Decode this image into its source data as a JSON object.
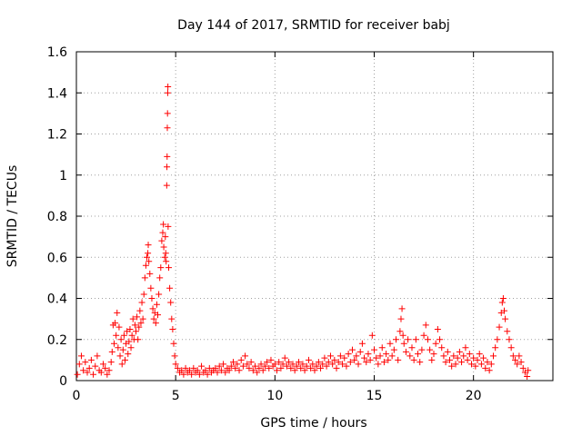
{
  "chart_data": {
    "type": "scatter",
    "title": "Day 144 of 2017, SRMTID for receiver babj",
    "xlabel": "GPS time / hours",
    "ylabel": "SRMTID / TECUs",
    "xlim": [
      0,
      24
    ],
    "ylim": [
      0,
      1.6
    ],
    "xticks": [
      0,
      5,
      10,
      15,
      20
    ],
    "xtick_labels": [
      "0",
      "5",
      "10",
      "15",
      "20"
    ],
    "yticks": [
      0,
      0.2,
      0.4,
      0.6,
      0.8,
      1,
      1.2,
      1.4,
      1.6
    ],
    "ytick_labels": [
      "0",
      "0.2",
      "0.4",
      "0.6",
      "0.8",
      "1",
      "1.2",
      "1.4",
      "1.6"
    ],
    "grid": true,
    "marker": "+",
    "color": "#ff0000",
    "series": [
      {
        "name": "SRMTID babj",
        "points": [
          [
            0.05,
            0.03
          ],
          [
            0.15,
            0.08
          ],
          [
            0.25,
            0.12
          ],
          [
            0.35,
            0.05
          ],
          [
            0.45,
            0.09
          ],
          [
            0.55,
            0.04
          ],
          [
            0.65,
            0.06
          ],
          [
            0.75,
            0.1
          ],
          [
            0.85,
            0.03
          ],
          [
            0.95,
            0.07
          ],
          [
            1.05,
            0.12
          ],
          [
            1.15,
            0.05
          ],
          [
            1.25,
            0.04
          ],
          [
            1.35,
            0.08
          ],
          [
            1.45,
            0.06
          ],
          [
            1.55,
            0.03
          ],
          [
            1.65,
            0.05
          ],
          [
            1.75,
            0.09
          ],
          [
            1.8,
            0.14
          ],
          [
            1.85,
            0.27
          ],
          [
            1.9,
            0.18
          ],
          [
            1.95,
            0.28
          ],
          [
            2.0,
            0.22
          ],
          [
            2.05,
            0.33
          ],
          [
            2.1,
            0.16
          ],
          [
            2.15,
            0.26
          ],
          [
            2.2,
            0.12
          ],
          [
            2.25,
            0.2
          ],
          [
            2.3,
            0.08
          ],
          [
            2.35,
            0.15
          ],
          [
            2.4,
            0.22
          ],
          [
            2.45,
            0.1
          ],
          [
            2.5,
            0.18
          ],
          [
            2.55,
            0.24
          ],
          [
            2.6,
            0.13
          ],
          [
            2.65,
            0.19
          ],
          [
            2.7,
            0.25
          ],
          [
            2.75,
            0.16
          ],
          [
            2.8,
            0.22
          ],
          [
            2.85,
            0.3
          ],
          [
            2.9,
            0.2
          ],
          [
            2.95,
            0.27
          ],
          [
            3.0,
            0.24
          ],
          [
            3.05,
            0.31
          ],
          [
            3.1,
            0.2
          ],
          [
            3.15,
            0.26
          ],
          [
            3.2,
            0.34
          ],
          [
            3.25,
            0.28
          ],
          [
            3.3,
            0.38
          ],
          [
            3.35,
            0.3
          ],
          [
            3.4,
            0.42
          ],
          [
            3.45,
            0.5
          ],
          [
            3.5,
            0.56
          ],
          [
            3.55,
            0.6
          ],
          [
            3.6,
            0.62
          ],
          [
            3.62,
            0.66
          ],
          [
            3.65,
            0.58
          ],
          [
            3.7,
            0.52
          ],
          [
            3.75,
            0.45
          ],
          [
            3.8,
            0.4
          ],
          [
            3.85,
            0.35
          ],
          [
            3.9,
            0.3
          ],
          [
            3.95,
            0.33
          ],
          [
            4.0,
            0.28
          ],
          [
            4.05,
            0.37
          ],
          [
            4.1,
            0.32
          ],
          [
            4.15,
            0.42
          ],
          [
            4.2,
            0.5
          ],
          [
            4.25,
            0.55
          ],
          [
            4.3,
            0.68
          ],
          [
            4.35,
            0.72
          ],
          [
            4.38,
            0.76
          ],
          [
            4.4,
            0.65
          ],
          [
            4.45,
            0.6
          ],
          [
            4.48,
            0.7
          ],
          [
            4.5,
            0.62
          ],
          [
            4.52,
            0.58
          ],
          [
            4.55,
            0.95
          ],
          [
            4.56,
            1.04
          ],
          [
            4.57,
            1.09
          ],
          [
            4.58,
            1.23
          ],
          [
            4.59,
            1.3
          ],
          [
            4.6,
            1.4
          ],
          [
            4.61,
            1.43
          ],
          [
            4.62,
            0.75
          ],
          [
            4.65,
            0.55
          ],
          [
            4.7,
            0.45
          ],
          [
            4.75,
            0.38
          ],
          [
            4.8,
            0.3
          ],
          [
            4.85,
            0.25
          ],
          [
            4.9,
            0.18
          ],
          [
            4.95,
            0.12
          ],
          [
            5.0,
            0.08
          ],
          [
            5.1,
            0.06
          ],
          [
            5.2,
            0.04
          ],
          [
            5.3,
            0.05
          ],
          [
            5.4,
            0.03
          ],
          [
            5.5,
            0.06
          ],
          [
            5.6,
            0.04
          ],
          [
            5.7,
            0.05
          ],
          [
            5.8,
            0.03
          ],
          [
            5.9,
            0.06
          ],
          [
            6.0,
            0.04
          ],
          [
            6.1,
            0.05
          ],
          [
            6.2,
            0.03
          ],
          [
            6.3,
            0.07
          ],
          [
            6.4,
            0.04
          ],
          [
            6.5,
            0.05
          ],
          [
            6.6,
            0.03
          ],
          [
            6.7,
            0.06
          ],
          [
            6.8,
            0.04
          ],
          [
            6.9,
            0.05
          ],
          [
            7.0,
            0.06
          ],
          [
            7.1,
            0.04
          ],
          [
            7.2,
            0.07
          ],
          [
            7.3,
            0.05
          ],
          [
            7.4,
            0.08
          ],
          [
            7.5,
            0.04
          ],
          [
            7.6,
            0.06
          ],
          [
            7.7,
            0.05
          ],
          [
            7.8,
            0.07
          ],
          [
            7.9,
            0.09
          ],
          [
            8.0,
            0.06
          ],
          [
            8.1,
            0.08
          ],
          [
            8.2,
            0.05
          ],
          [
            8.3,
            0.1
          ],
          [
            8.4,
            0.07
          ],
          [
            8.5,
            0.12
          ],
          [
            8.6,
            0.08
          ],
          [
            8.7,
            0.06
          ],
          [
            8.8,
            0.09
          ],
          [
            8.9,
            0.05
          ],
          [
            9.0,
            0.07
          ],
          [
            9.1,
            0.04
          ],
          [
            9.2,
            0.06
          ],
          [
            9.3,
            0.08
          ],
          [
            9.4,
            0.05
          ],
          [
            9.5,
            0.07
          ],
          [
            9.6,
            0.09
          ],
          [
            9.7,
            0.06
          ],
          [
            9.8,
            0.1
          ],
          [
            9.9,
            0.07
          ],
          [
            10.0,
            0.08
          ],
          [
            10.1,
            0.05
          ],
          [
            10.2,
            0.09
          ],
          [
            10.3,
            0.06
          ],
          [
            10.4,
            0.08
          ],
          [
            10.5,
            0.11
          ],
          [
            10.6,
            0.07
          ],
          [
            10.7,
            0.09
          ],
          [
            10.8,
            0.06
          ],
          [
            10.9,
            0.08
          ],
          [
            11.0,
            0.05
          ],
          [
            11.1,
            0.07
          ],
          [
            11.2,
            0.09
          ],
          [
            11.3,
            0.06
          ],
          [
            11.4,
            0.08
          ],
          [
            11.5,
            0.05
          ],
          [
            11.6,
            0.07
          ],
          [
            11.7,
            0.1
          ],
          [
            11.8,
            0.06
          ],
          [
            11.9,
            0.08
          ],
          [
            12.0,
            0.05
          ],
          [
            12.1,
            0.07
          ],
          [
            12.2,
            0.09
          ],
          [
            12.3,
            0.06
          ],
          [
            12.4,
            0.08
          ],
          [
            12.5,
            0.11
          ],
          [
            12.6,
            0.07
          ],
          [
            12.7,
            0.09
          ],
          [
            12.8,
            0.12
          ],
          [
            12.9,
            0.08
          ],
          [
            13.0,
            0.1
          ],
          [
            13.1,
            0.06
          ],
          [
            13.2,
            0.09
          ],
          [
            13.3,
            0.12
          ],
          [
            13.4,
            0.08
          ],
          [
            13.5,
            0.11
          ],
          [
            13.6,
            0.07
          ],
          [
            13.7,
            0.13
          ],
          [
            13.8,
            0.09
          ],
          [
            13.9,
            0.15
          ],
          [
            14.0,
            0.1
          ],
          [
            14.1,
            0.12
          ],
          [
            14.2,
            0.08
          ],
          [
            14.3,
            0.14
          ],
          [
            14.4,
            0.18
          ],
          [
            14.5,
            0.11
          ],
          [
            14.6,
            0.09
          ],
          [
            14.7,
            0.13
          ],
          [
            14.8,
            0.1
          ],
          [
            14.9,
            0.22
          ],
          [
            15.0,
            0.15
          ],
          [
            15.1,
            0.11
          ],
          [
            15.2,
            0.08
          ],
          [
            15.3,
            0.12
          ],
          [
            15.4,
            0.16
          ],
          [
            15.5,
            0.09
          ],
          [
            15.6,
            0.13
          ],
          [
            15.7,
            0.1
          ],
          [
            15.8,
            0.18
          ],
          [
            15.9,
            0.12
          ],
          [
            16.0,
            0.15
          ],
          [
            16.1,
            0.2
          ],
          [
            16.2,
            0.1
          ],
          [
            16.3,
            0.24
          ],
          [
            16.35,
            0.3
          ],
          [
            16.4,
            0.35
          ],
          [
            16.45,
            0.22
          ],
          [
            16.5,
            0.18
          ],
          [
            16.6,
            0.14
          ],
          [
            16.7,
            0.2
          ],
          [
            16.8,
            0.12
          ],
          [
            16.9,
            0.16
          ],
          [
            17.0,
            0.1
          ],
          [
            17.1,
            0.2
          ],
          [
            17.2,
            0.13
          ],
          [
            17.3,
            0.09
          ],
          [
            17.4,
            0.15
          ],
          [
            17.5,
            0.22
          ],
          [
            17.6,
            0.27
          ],
          [
            17.7,
            0.2
          ],
          [
            17.8,
            0.15
          ],
          [
            17.9,
            0.1
          ],
          [
            18.0,
            0.13
          ],
          [
            18.1,
            0.18
          ],
          [
            18.2,
            0.25
          ],
          [
            18.3,
            0.2
          ],
          [
            18.4,
            0.16
          ],
          [
            18.5,
            0.12
          ],
          [
            18.6,
            0.09
          ],
          [
            18.7,
            0.14
          ],
          [
            18.8,
            0.1
          ],
          [
            18.9,
            0.07
          ],
          [
            19.0,
            0.12
          ],
          [
            19.1,
            0.08
          ],
          [
            19.2,
            0.11
          ],
          [
            19.3,
            0.14
          ],
          [
            19.4,
            0.09
          ],
          [
            19.5,
            0.12
          ],
          [
            19.6,
            0.16
          ],
          [
            19.7,
            0.1
          ],
          [
            19.8,
            0.13
          ],
          [
            19.9,
            0.08
          ],
          [
            20.0,
            0.11
          ],
          [
            20.1,
            0.07
          ],
          [
            20.2,
            0.1
          ],
          [
            20.3,
            0.13
          ],
          [
            20.4,
            0.08
          ],
          [
            20.5,
            0.11
          ],
          [
            20.6,
            0.06
          ],
          [
            20.7,
            0.09
          ],
          [
            20.8,
            0.05
          ],
          [
            20.9,
            0.08
          ],
          [
            21.0,
            0.12
          ],
          [
            21.1,
            0.16
          ],
          [
            21.2,
            0.2
          ],
          [
            21.3,
            0.26
          ],
          [
            21.4,
            0.33
          ],
          [
            21.45,
            0.38
          ],
          [
            21.5,
            0.4
          ],
          [
            21.55,
            0.34
          ],
          [
            21.6,
            0.3
          ],
          [
            21.7,
            0.24
          ],
          [
            21.8,
            0.2
          ],
          [
            21.9,
            0.16
          ],
          [
            22.0,
            0.12
          ],
          [
            22.1,
            0.1
          ],
          [
            22.2,
            0.08
          ],
          [
            22.3,
            0.12
          ],
          [
            22.4,
            0.09
          ],
          [
            22.5,
            0.06
          ],
          [
            22.6,
            0.04
          ],
          [
            22.7,
            0.02
          ],
          [
            22.75,
            0.05
          ]
        ]
      }
    ]
  }
}
